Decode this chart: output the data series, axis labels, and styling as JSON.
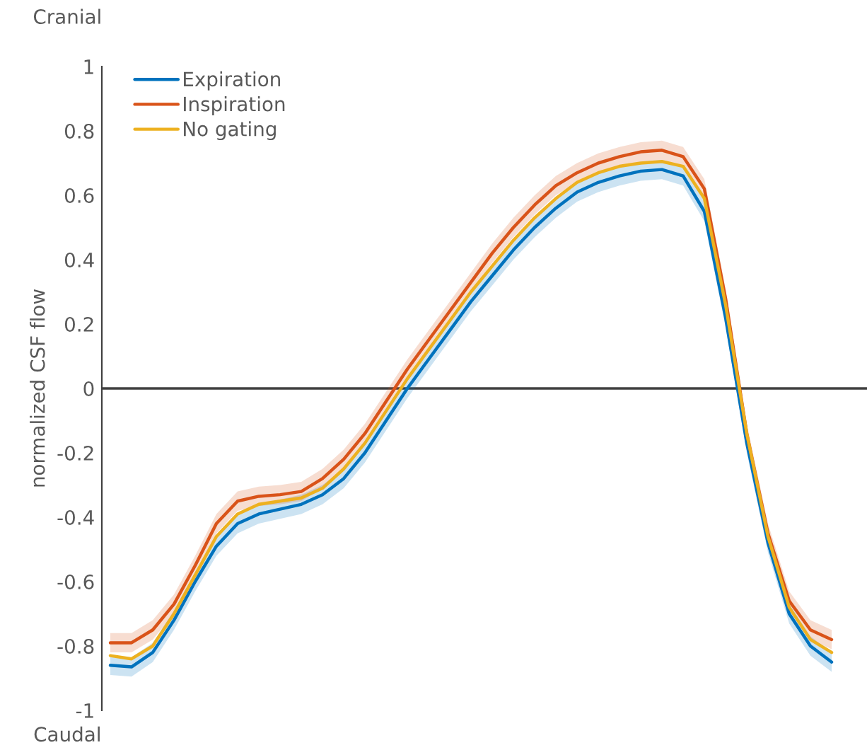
{
  "chart_data": {
    "type": "line",
    "ylabel": "normalized CSF flow",
    "annotations": [
      "Cranial",
      "Caudal"
    ],
    "categories": [
      null,
      null,
      null,
      null,
      null,
      null,
      null,
      null,
      null,
      null,
      null,
      null,
      null,
      null,
      null,
      null,
      null,
      null,
      null,
      null,
      null,
      null,
      null,
      null,
      null,
      null,
      null,
      null,
      null,
      null,
      null,
      null,
      null,
      null,
      null
    ],
    "series": [
      {
        "name": "Expiration",
        "color": "#0072bd",
        "values": [
          -0.86,
          -0.865,
          -0.82,
          -0.72,
          -0.6,
          -0.49,
          -0.42,
          -0.39,
          -0.375,
          -0.36,
          -0.33,
          -0.28,
          -0.2,
          -0.1,
          0.0,
          0.09,
          0.18,
          0.27,
          0.35,
          0.43,
          0.5,
          0.56,
          0.61,
          0.64,
          0.66,
          0.675,
          0.68,
          0.66,
          0.55,
          0.22,
          -0.17,
          -0.48,
          -0.7,
          -0.8,
          -0.85
        ],
        "lower": [
          -0.89,
          -0.895,
          -0.85,
          -0.75,
          -0.63,
          -0.52,
          -0.45,
          -0.42,
          -0.405,
          -0.39,
          -0.36,
          -0.31,
          -0.23,
          -0.13,
          -0.03,
          0.06,
          0.15,
          0.24,
          0.32,
          0.4,
          0.47,
          0.53,
          0.58,
          0.61,
          0.63,
          0.645,
          0.65,
          0.63,
          0.52,
          0.19,
          -0.2,
          -0.51,
          -0.73,
          -0.83,
          -0.88
        ],
        "upper": [
          -0.83,
          -0.835,
          -0.79,
          -0.69,
          -0.57,
          -0.46,
          -0.39,
          -0.36,
          -0.345,
          -0.33,
          -0.3,
          -0.25,
          -0.17,
          -0.07,
          0.03,
          0.12,
          0.21,
          0.3,
          0.38,
          0.46,
          0.53,
          0.59,
          0.64,
          0.67,
          0.69,
          0.705,
          0.71,
          0.69,
          0.58,
          0.25,
          -0.14,
          -0.45,
          -0.67,
          -0.77,
          -0.82
        ]
      },
      {
        "name": "Inspiration",
        "color": "#d95319",
        "values": [
          -0.79,
          -0.79,
          -0.75,
          -0.67,
          -0.55,
          -0.42,
          -0.35,
          -0.335,
          -0.33,
          -0.32,
          -0.28,
          -0.22,
          -0.14,
          -0.04,
          0.06,
          0.15,
          0.24,
          0.33,
          0.42,
          0.5,
          0.57,
          0.63,
          0.67,
          0.7,
          0.72,
          0.735,
          0.74,
          0.72,
          0.62,
          0.28,
          -0.14,
          -0.45,
          -0.66,
          -0.75,
          -0.78
        ],
        "lower": [
          -0.82,
          -0.82,
          -0.78,
          -0.7,
          -0.58,
          -0.45,
          -0.38,
          -0.365,
          -0.36,
          -0.35,
          -0.31,
          -0.25,
          -0.17,
          -0.07,
          0.03,
          0.12,
          0.21,
          0.3,
          0.39,
          0.47,
          0.54,
          0.6,
          0.64,
          0.67,
          0.69,
          0.705,
          0.71,
          0.69,
          0.59,
          0.25,
          -0.17,
          -0.48,
          -0.69,
          -0.78,
          -0.81
        ],
        "upper": [
          -0.76,
          -0.76,
          -0.72,
          -0.64,
          -0.52,
          -0.39,
          -0.32,
          -0.305,
          -0.3,
          -0.29,
          -0.25,
          -0.19,
          -0.11,
          -0.01,
          0.09,
          0.18,
          0.27,
          0.36,
          0.45,
          0.53,
          0.6,
          0.66,
          0.7,
          0.73,
          0.75,
          0.765,
          0.77,
          0.75,
          0.65,
          0.31,
          -0.11,
          -0.42,
          -0.63,
          -0.72,
          -0.75
        ]
      },
      {
        "name": "No gating",
        "color": "#edb120",
        "values": [
          -0.83,
          -0.84,
          -0.8,
          -0.7,
          -0.58,
          -0.46,
          -0.39,
          -0.36,
          -0.35,
          -0.34,
          -0.31,
          -0.25,
          -0.17,
          -0.07,
          0.03,
          0.12,
          0.21,
          0.3,
          0.38,
          0.46,
          0.53,
          0.59,
          0.64,
          0.67,
          0.69,
          0.7,
          0.705,
          0.69,
          0.59,
          0.26,
          -0.14,
          -0.46,
          -0.68,
          -0.78,
          -0.82
        ]
      }
    ],
    "ylim": [
      -1,
      1
    ],
    "yticks": [
      -1,
      -0.8,
      -0.6,
      -0.4,
      -0.2,
      0,
      0.2,
      0.4,
      0.6,
      0.8,
      1
    ],
    "ref_lines": [
      {
        "axis": "y",
        "value": 0,
        "color": "#404040"
      }
    ],
    "legend": "top left",
    "grid": false
  }
}
